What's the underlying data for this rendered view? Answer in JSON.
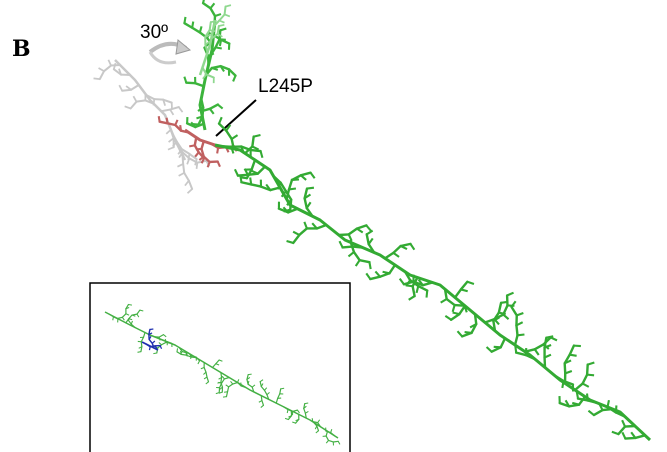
{
  "panel_label": "B",
  "annotations": {
    "rotation": "30º",
    "mutation": "L245P"
  }
}
